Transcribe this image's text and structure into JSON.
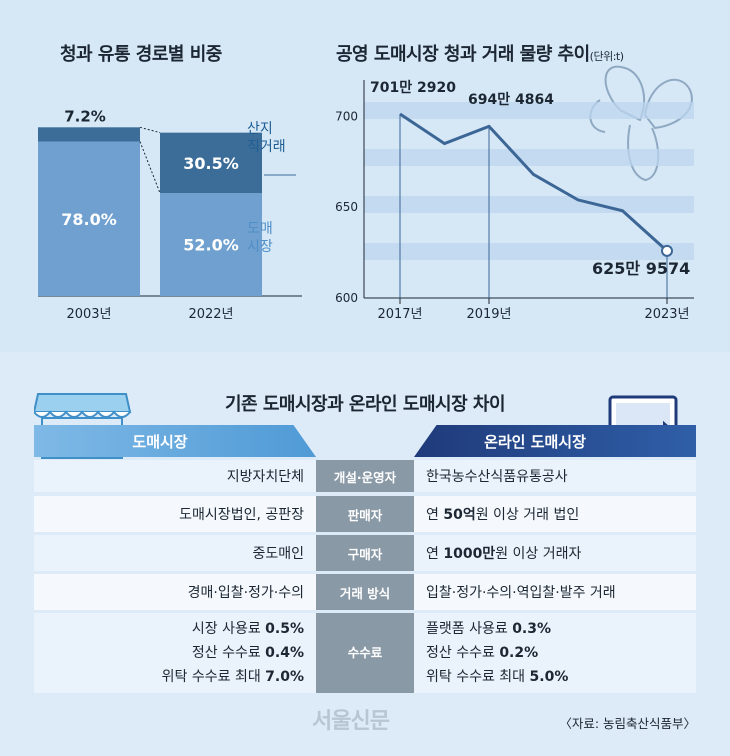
{
  "left_chart_title": "청과 유통 경로별 비중",
  "right_chart_title": "공영 도매시장 청과 거래 물량 추이",
  "right_chart_unit": "(단위:t)",
  "chart_data": [
    {
      "type": "bar",
      "stacked": true,
      "title": "청과 유통 경로별 비중",
      "categories": [
        "2003년",
        "2022년"
      ],
      "series": [
        {
          "name": "도매시장",
          "values": [
            78.0,
            52.0
          ],
          "labels": [
            "78.0%",
            "52.0%"
          ]
        },
        {
          "name": "산지직거래",
          "values": [
            7.2,
            30.5
          ],
          "labels": [
            "7.2%",
            "30.5%"
          ]
        }
      ],
      "legend": [
        {
          "line1": "산지",
          "line2": "직거래"
        },
        {
          "line1": "도매",
          "line2": "시장"
        }
      ],
      "ylim": [
        0,
        100
      ]
    },
    {
      "type": "line",
      "title": "공영 도매시장 청과 거래 물량 추이",
      "x": [
        2017,
        2018,
        2019,
        2020,
        2021,
        2022,
        2023
      ],
      "values": [
        7012920,
        6850000,
        6944864,
        6680000,
        6540000,
        6480000,
        6259574
      ],
      "yticks": [
        700,
        650,
        600
      ],
      "ylim": [
        600,
        720
      ],
      "xticks": [
        "2017년",
        "2019년",
        "2023년"
      ],
      "annotations": [
        "701만 2920",
        "694만 4864",
        "625만 9574"
      ]
    }
  ],
  "compare_title": "기존 도매시장과 온라인 도매시장 차이",
  "header_left": "도매시장",
  "header_right": "온라인 도매시장",
  "rows": [
    {
      "left": "지방자치단체",
      "mid": "개설·운영자",
      "right": "한국농수산식품유통공사"
    },
    {
      "left": "도매시장법인, 공판장",
      "mid": "판매자",
      "right_pre": "연 ",
      "right_b": "50억",
      "right_post": "원 이상 거래 법인"
    },
    {
      "left": "중도매인",
      "mid": "구매자",
      "right_pre": "연 ",
      "right_b": "1000만",
      "right_post": "원 이상 거래자"
    },
    {
      "left": "경매·입찰·정가·수의",
      "mid": "거래 방식",
      "right": "입찰·정가·수의·역입찰·발주 거래"
    }
  ],
  "fees": {
    "mid": "수수료",
    "left": [
      {
        "label": "시장 사용료 ",
        "value": "0.5%"
      },
      {
        "label": "정산 수수료 ",
        "value": "0.4%"
      },
      {
        "label": "위탁 수수료 최대 ",
        "value": "7.0%"
      }
    ],
    "right": [
      {
        "label": "플랫폼 사용료 ",
        "value": "0.3%"
      },
      {
        "label": "정산 수수료 ",
        "value": "0.2%"
      },
      {
        "label": "위탁 수수료 최대 ",
        "value": "5.0%"
      }
    ]
  },
  "source": "〈자료: 농림축산식품부〉",
  "logo_text": "서울신문",
  "colors": {
    "bar_main": "#6fa0cf",
    "bar_top": "#3c6d99",
    "line": "#3b6696"
  }
}
